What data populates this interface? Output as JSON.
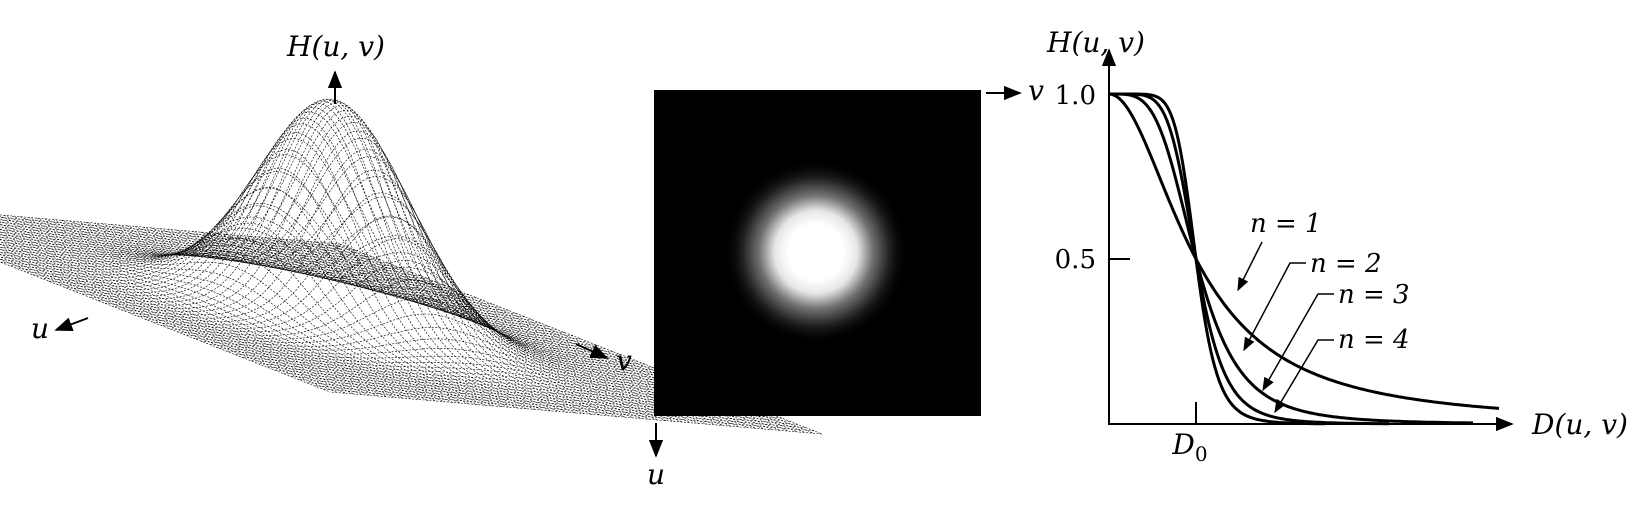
{
  "panel_surface": {
    "z_axis_label": "H(u, v)",
    "u_axis_label": "u",
    "v_axis_label": "v"
  },
  "panel_image": {
    "v_axis_label": "v",
    "u_axis_label": "u"
  },
  "panel_profile": {
    "y_axis_label": "H(u, v)",
    "x_axis_label": "D(u, v)",
    "cutoff_label": "D",
    "cutoff_subscript": "0",
    "ytick_1": "1.0",
    "ytick_05": "0.5",
    "curve_labels": [
      "n = 1",
      "n = 2",
      "n = 3",
      "n = 4"
    ]
  },
  "chart_data": {
    "type": "line",
    "y_range": [
      0,
      1.0
    ],
    "series": [
      {
        "name": "n = 1",
        "order": 1
      },
      {
        "name": "n = 2",
        "order": 2
      },
      {
        "name": "n = 3",
        "order": 3
      },
      {
        "name": "n = 4",
        "order": 4
      }
    ]
  },
  "colors": {
    "ink": "#000000",
    "background": "#ffffff",
    "image_background": "#000000",
    "glow": "#ffffff"
  }
}
